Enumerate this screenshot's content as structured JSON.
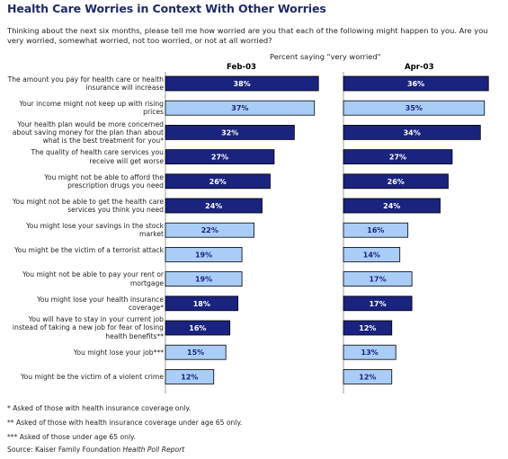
{
  "title": "Health Care Worries in Context With Other Worries",
  "question": "Thinking about the next six months, please tell me how worried are you that each of the following might happen to you.  Are you very worried, somewhat worried, not too worried, or not at all worried?",
  "subtitle": "Percent saying \"very worried\"",
  "chart_data": {
    "type": "bar",
    "orientation": "horizontal",
    "value_suffix": "%",
    "xlim": [
      0,
      40
    ],
    "colors": {
      "health": "#1a237e",
      "other": "#a9cdf6",
      "border": "#000000",
      "label_light": "#ffffff",
      "label_dark": "#1a237e"
    },
    "categories": [
      "The amount you pay for health care or health insurance will increase",
      "Your income might not keep up with rising prices",
      "Your health plan would be more concerned about saving money for the plan than about what is the best treatment for you*",
      "The quality of health care services you receive will get worse",
      "You might not be able to afford the prescription drugs you need",
      "You might not be able to get the health care services you think you need",
      "You might lose your savings in the stock market",
      "You might be the victim of a terrorist attack",
      "You might not be able to pay your rent or mortgage",
      "You might lose your health insurance coverage*",
      "You will have to stay in your current job instead of taking a new job for fear of losing health benefits**",
      "You might lose your job***",
      "You might be the victim of a violent crime"
    ],
    "category_type": [
      "health",
      "other",
      "health",
      "health",
      "health",
      "health",
      "other",
      "other",
      "other",
      "health",
      "health",
      "other",
      "other"
    ],
    "series": [
      {
        "name": "Feb-03",
        "values": [
          38,
          37,
          32,
          27,
          26,
          24,
          22,
          19,
          19,
          18,
          16,
          15,
          12
        ]
      },
      {
        "name": "Apr-03",
        "values": [
          36,
          35,
          34,
          27,
          26,
          24,
          16,
          14,
          17,
          17,
          12,
          13,
          12
        ]
      }
    ]
  },
  "footnotes": [
    "* Asked of those with health insurance coverage only.",
    "** Asked of those with health insurance coverage under age 65 only.",
    "*** Asked of those under age 65 only."
  ],
  "source_prefix": "Source: Kaiser Family Foundation",
  "source_title": "Health Poll Report"
}
